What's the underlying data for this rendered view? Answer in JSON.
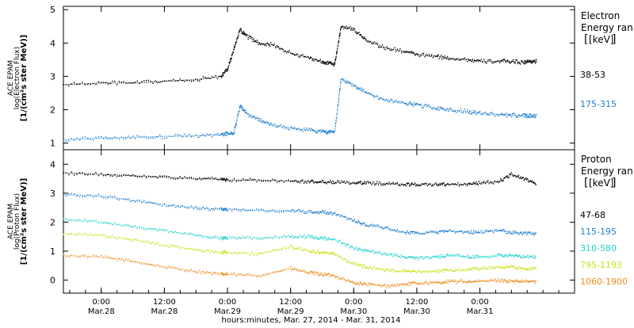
{
  "chart_data": [
    {
      "type": "scatter",
      "panel": "electron",
      "ylabel_lines": [
        "ACE EPAM",
        "log(Electron Flux)",
        "[1/(cm²s ster MeV)]"
      ],
      "ylim": [
        0.8,
        5.1
      ],
      "yticks": [
        1,
        2,
        3,
        4,
        5
      ],
      "legend_title_lines": [
        "Electron",
        "Energy ran",
        "[keV]"
      ],
      "x": [
        -0.6,
        0.0,
        0.5,
        1.0,
        1.5,
        1.9,
        2.0,
        2.1,
        2.2,
        2.3,
        2.5,
        2.7,
        3.0,
        3.3,
        3.5,
        3.6,
        3.7,
        3.8,
        4.0,
        4.2,
        4.5,
        4.8,
        5.0,
        5.3,
        5.5,
        5.8,
        6.0,
        6.3,
        6.5,
        6.7,
        6.8,
        6.9
      ],
      "series": [
        {
          "name": "38-53",
          "color": "#000000",
          "values": [
            2.75,
            2.8,
            2.8,
            2.85,
            2.9,
            3.0,
            3.2,
            3.8,
            4.4,
            4.2,
            4.0,
            3.95,
            3.7,
            3.55,
            3.45,
            3.4,
            3.35,
            4.5,
            4.4,
            4.1,
            3.85,
            3.75,
            3.65,
            3.6,
            3.55,
            3.5,
            3.45,
            3.45,
            3.45,
            3.42,
            3.45,
            3.45
          ]
        },
        {
          "name": "175-315",
          "color": "#1f7fd0",
          "values": [
            1.1,
            1.15,
            1.17,
            1.2,
            1.22,
            1.25,
            1.28,
            1.3,
            2.1,
            1.9,
            1.7,
            1.55,
            1.45,
            1.38,
            1.35,
            1.33,
            1.35,
            2.9,
            2.75,
            2.5,
            2.3,
            2.2,
            2.15,
            2.05,
            2.0,
            1.95,
            1.9,
            1.85,
            1.83,
            1.82,
            1.82,
            1.82
          ]
        }
      ]
    },
    {
      "type": "scatter",
      "panel": "proton",
      "ylabel_lines": [
        "ACE EPAM",
        "log(Proton Flux)",
        "[1/(cm²s ster MeV)]"
      ],
      "ylim": [
        -0.45,
        4.5
      ],
      "yticks": [
        0,
        1,
        2,
        3,
        4
      ],
      "legend_title_lines": [
        "Proton",
        "Energy ran",
        "[keV]"
      ],
      "xlabel": "hours:minutes, Mar. 27, 2014 - Mar. 31, 2014",
      "xtick_times": [
        "0:00",
        "12:00",
        "0:00",
        "12:00",
        "0:00",
        "12:00",
        "0:00"
      ],
      "xtick_dates": [
        "Mar.28",
        "Mar.28",
        "Mar.29",
        "Mar.29",
        "Mar.30",
        "Mar.30",
        "Mar.31"
      ],
      "xtick_values": [
        0,
        1,
        2,
        3,
        4,
        5,
        6
      ],
      "xlim": [
        -0.6,
        7.5
      ],
      "x": [
        -0.6,
        0.0,
        0.5,
        1.0,
        1.5,
        1.9,
        2.0,
        2.5,
        3.0,
        3.3,
        3.5,
        3.7,
        4.0,
        4.2,
        4.5,
        4.8,
        5.0,
        5.3,
        5.5,
        5.8,
        6.0,
        6.3,
        6.5,
        6.7,
        6.9
      ],
      "series": [
        {
          "name": "47-68",
          "color": "#000000",
          "values": [
            3.7,
            3.65,
            3.6,
            3.55,
            3.5,
            3.48,
            3.45,
            3.45,
            3.42,
            3.4,
            3.38,
            3.38,
            3.35,
            3.35,
            3.33,
            3.3,
            3.3,
            3.3,
            3.3,
            3.3,
            3.35,
            3.4,
            3.65,
            3.5,
            3.3
          ]
        },
        {
          "name": "115-195",
          "color": "#1f7fd0",
          "values": [
            2.95,
            2.9,
            2.75,
            2.6,
            2.5,
            2.45,
            2.45,
            2.4,
            2.4,
            2.35,
            2.35,
            2.3,
            2.05,
            1.9,
            1.8,
            1.65,
            1.6,
            1.65,
            1.7,
            1.65,
            1.65,
            1.7,
            1.65,
            1.6,
            1.6
          ]
        },
        {
          "name": "310-580",
          "color": "#22d3cf",
          "values": [
            2.1,
            2.0,
            1.85,
            1.7,
            1.55,
            1.45,
            1.45,
            1.45,
            1.5,
            1.5,
            1.45,
            1.4,
            1.1,
            1.0,
            0.9,
            0.8,
            0.75,
            0.8,
            0.85,
            0.8,
            0.8,
            0.85,
            0.85,
            0.8,
            0.8
          ]
        },
        {
          "name": "795-1193",
          "color": "#cde01e",
          "values": [
            1.6,
            1.55,
            1.4,
            1.2,
            1.05,
            0.95,
            0.95,
            0.9,
            1.15,
            1.0,
            0.95,
            0.9,
            0.55,
            0.45,
            0.35,
            0.3,
            0.3,
            0.3,
            0.35,
            0.35,
            0.4,
            0.45,
            0.45,
            0.4,
            0.4
          ]
        },
        {
          "name": "1060-1900",
          "color": "#ef8a1c",
          "values": [
            0.85,
            0.8,
            0.65,
            0.45,
            0.3,
            0.2,
            0.2,
            0.15,
            0.4,
            0.25,
            0.2,
            0.15,
            -0.1,
            -0.15,
            -0.2,
            -0.15,
            -0.1,
            -0.1,
            -0.05,
            -0.05,
            -0.05,
            0.0,
            -0.05,
            -0.05,
            -0.05
          ]
        }
      ]
    }
  ]
}
